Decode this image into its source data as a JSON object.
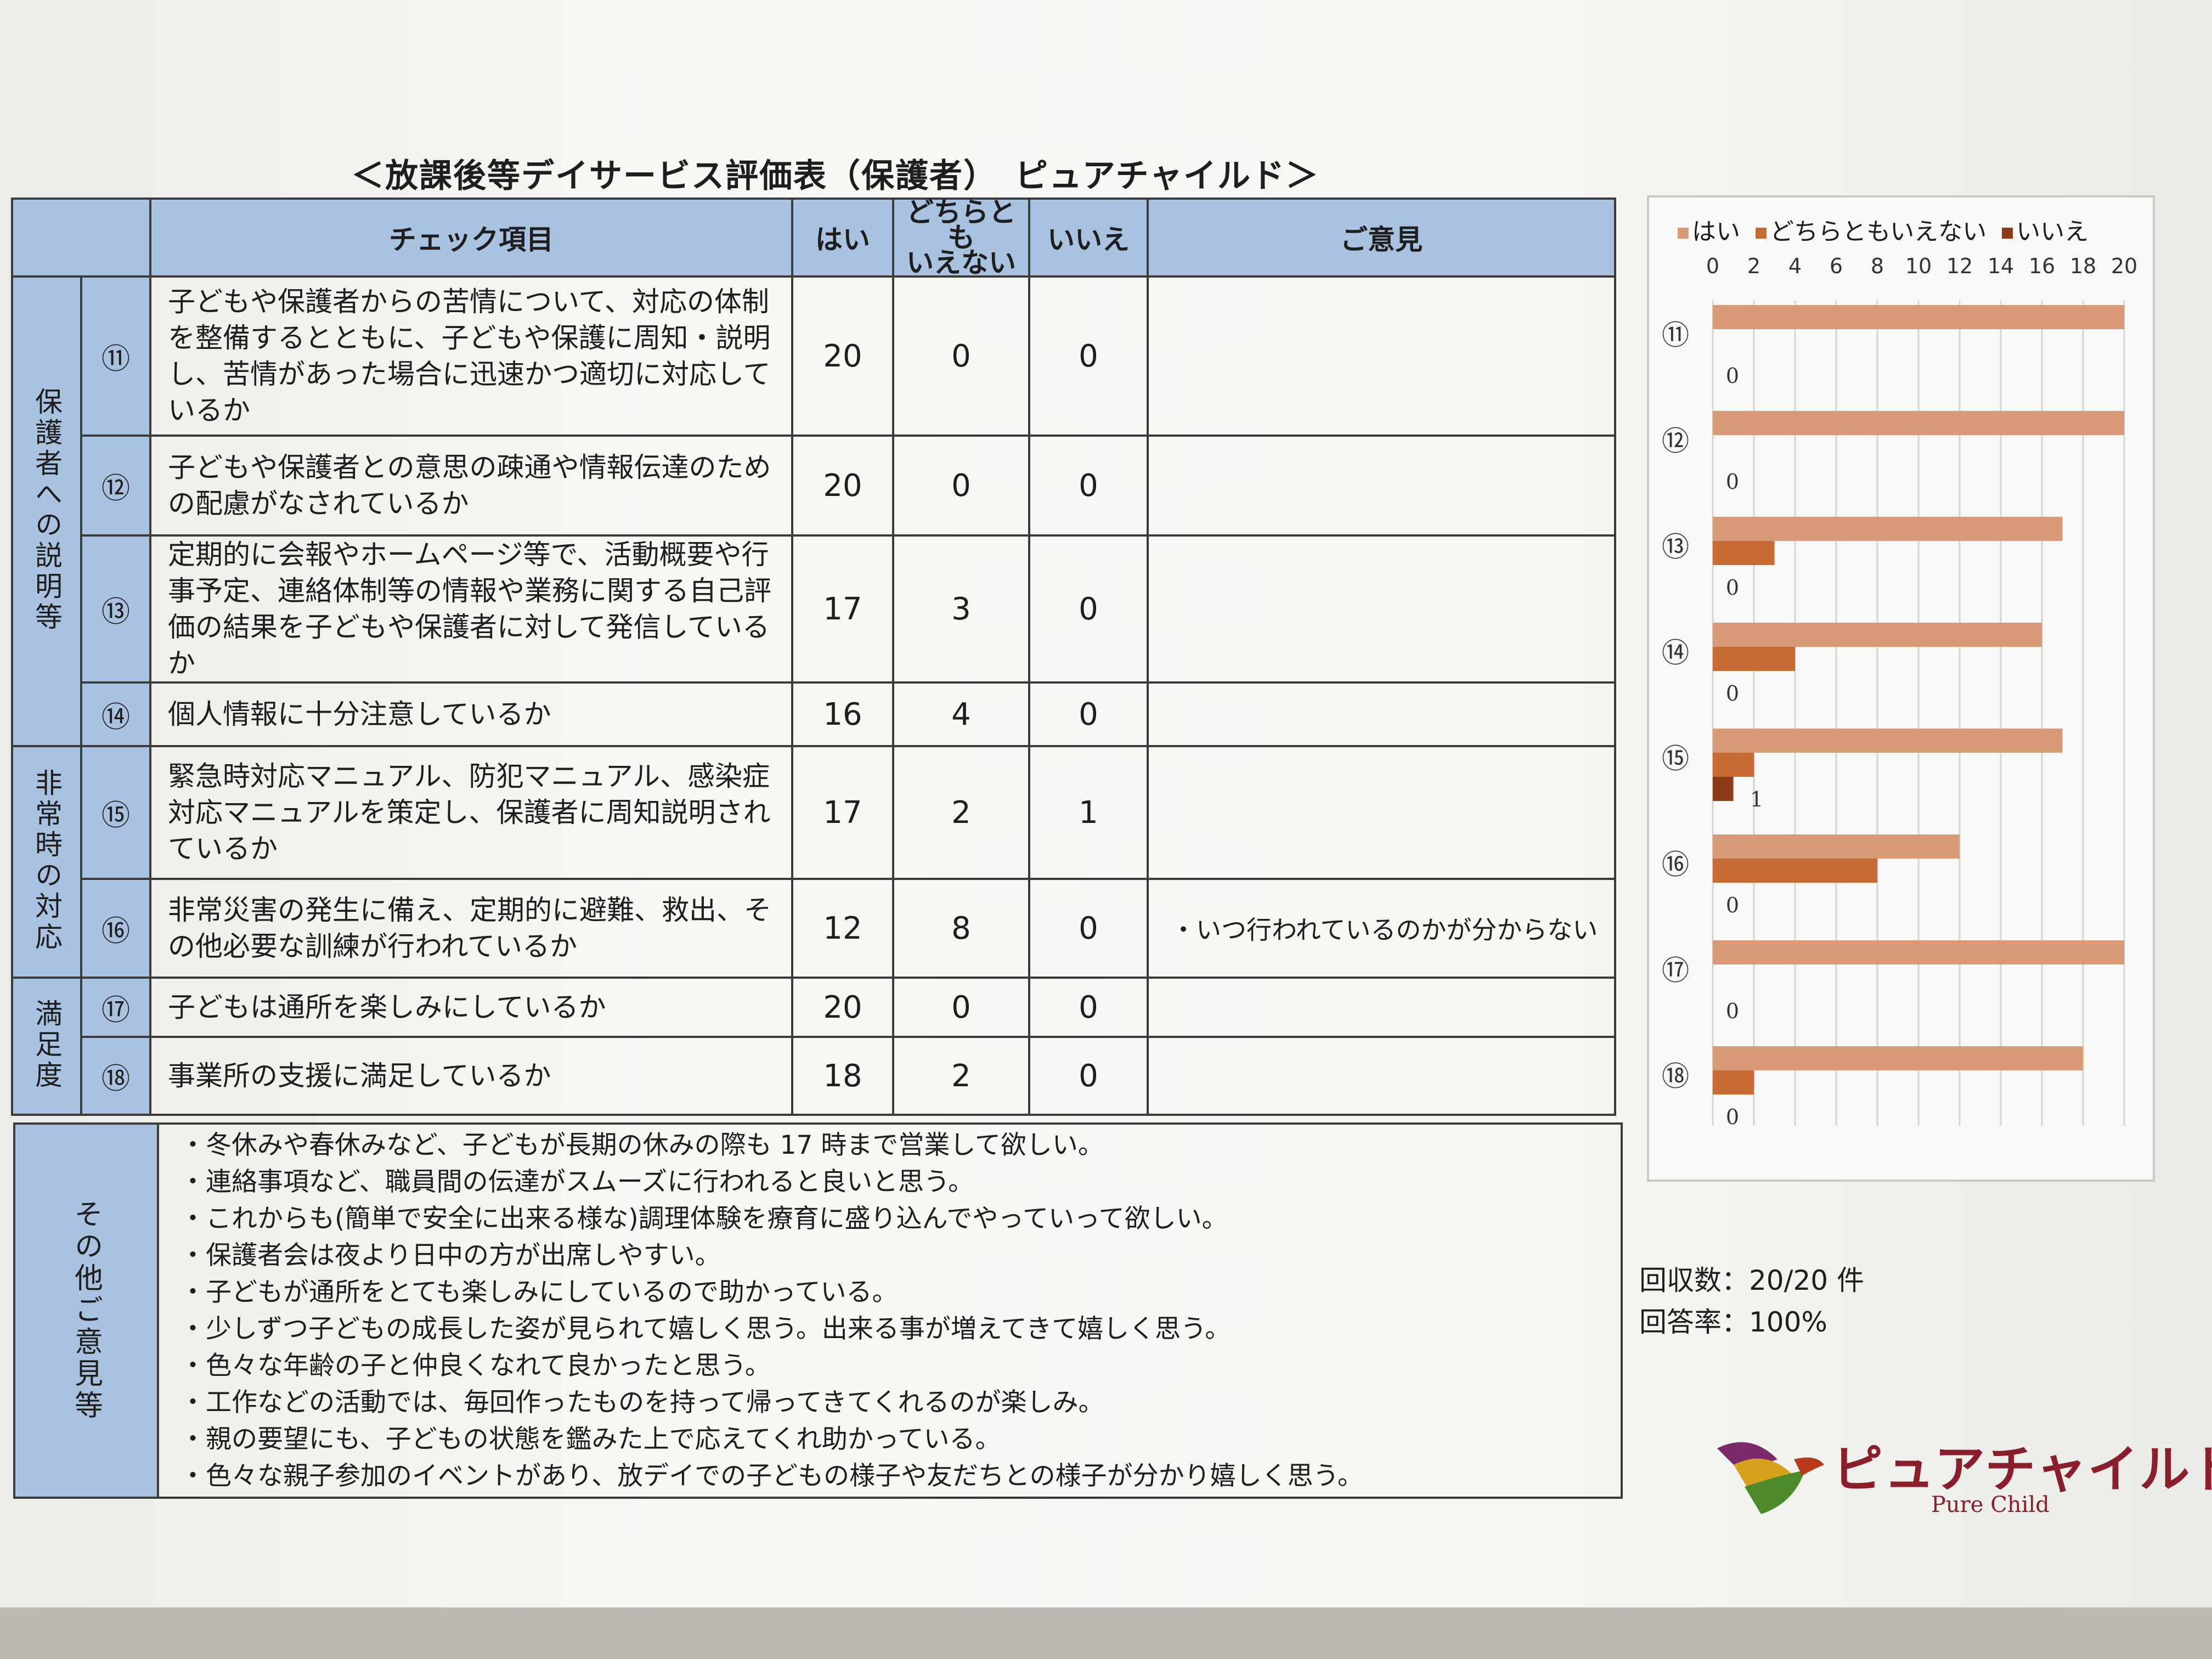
{
  "title": "＜放課後等デイサービス評価表（保護者）　ピュアチャイルド＞",
  "table": {
    "headers": {
      "item": "チェック項目",
      "yes": "はい",
      "neither": "どちらとも\nいえない",
      "no": "いいえ",
      "opinion": "ご意見"
    },
    "categories": [
      "保護者への説明等",
      "非常時の対応",
      "満足度"
    ],
    "rows": [
      {
        "num": "⑪",
        "item": "子どもや保護者からの苦情について、対応の体制を整備するとともに、子どもや保護に周知・説明し、苦情があった場合に迅速かつ適切に対応しているか",
        "yes": "20",
        "neither": "0",
        "no": "0",
        "opinion": ""
      },
      {
        "num": "⑫",
        "item": "子どもや保護者との意思の疎通や情報伝達のための配慮がなされているか",
        "yes": "20",
        "neither": "0",
        "no": "0",
        "opinion": ""
      },
      {
        "num": "⑬",
        "item": "定期的に会報やホームページ等で、活動概要や行事予定、連絡体制等の情報や業務に関する自己評価の結果を子どもや保護者に対して発信しているか",
        "yes": "17",
        "neither": "3",
        "no": "0",
        "opinion": ""
      },
      {
        "num": "⑭",
        "item": "個人情報に十分注意しているか",
        "yes": "16",
        "neither": "4",
        "no": "0",
        "opinion": ""
      },
      {
        "num": "⑮",
        "item": "緊急時対応マニュアル、防犯マニュアル、感染症対応マニュアルを策定し、保護者に周知説明されているか",
        "yes": "17",
        "neither": "2",
        "no": "1",
        "opinion": ""
      },
      {
        "num": "⑯",
        "item": "非常災害の発生に備え、定期的に避難、救出、その他必要な訓練が行われているか",
        "yes": "12",
        "neither": "8",
        "no": "0",
        "opinion": "・いつ行われているのかが分からない"
      },
      {
        "num": "⑰",
        "item": "子どもは通所を楽しみにしているか",
        "yes": "20",
        "neither": "0",
        "no": "0",
        "opinion": ""
      },
      {
        "num": "⑱",
        "item": "事業所の支援に満足しているか",
        "yes": "18",
        "neither": "2",
        "no": "0",
        "opinion": ""
      }
    ]
  },
  "other": {
    "label": "その他ご意見等",
    "items": [
      "・冬休みや春休みなど、子どもが長期の休みの際も 17 時まで営業して欲しい。",
      "・連絡事項など、職員間の伝達がスムーズに行われると良いと思う。",
      "・これからも(簡単で安全に出来る様な)調理体験を療育に盛り込んでやっていって欲しい。",
      "・保護者会は夜より日中の方が出席しやすい。",
      "・子どもが通所をとても楽しみにしているので助かっている。",
      "・少しずつ子どもの成長した姿が見られて嬉しく思う。出来る事が増えてきて嬉しく思う。",
      "・色々な年齢の子と仲良くなれて良かったと思う。",
      "・工作などの活動では、毎回作ったものを持って帰ってきてくれるのが楽しみ。",
      "・親の要望にも、子どもの状態を鑑みた上で応えてくれ助かっている。",
      "・色々な親子参加のイベントがあり、放デイでの子どもの様子や友だちとの様子が分かり嬉しく思う。"
    ]
  },
  "chart_data": {
    "type": "bar",
    "orientation": "horizontal",
    "categories": [
      "⑪",
      "⑫",
      "⑬",
      "⑭",
      "⑮",
      "⑯",
      "⑰",
      "⑱"
    ],
    "series": [
      {
        "name": "はい",
        "color": "#d99a78",
        "values": [
          20,
          20,
          17,
          16,
          17,
          12,
          20,
          18
        ]
      },
      {
        "name": "どちらともいえない",
        "color": "#c86a33",
        "values": [
          0,
          0,
          3,
          4,
          2,
          8,
          0,
          2
        ]
      },
      {
        "name": "いいえ",
        "color": "#8b3a1a",
        "values": [
          0,
          0,
          0,
          0,
          1,
          0,
          0,
          0
        ]
      }
    ],
    "data_labels": [
      "0",
      "0",
      "0",
      "0",
      "1",
      "0",
      "0",
      "0"
    ],
    "xticks": [
      "0",
      "2",
      "4",
      "6",
      "8",
      "10",
      "12",
      "14",
      "16",
      "18",
      "20"
    ],
    "xlim": [
      0,
      20
    ],
    "grid": true,
    "legend_position": "top"
  },
  "stats": {
    "count": "回収数：20/20 件",
    "rate": "回答率：100%"
  },
  "logo": {
    "jp": "ピュアチャイルド",
    "en": "Pure Child"
  }
}
